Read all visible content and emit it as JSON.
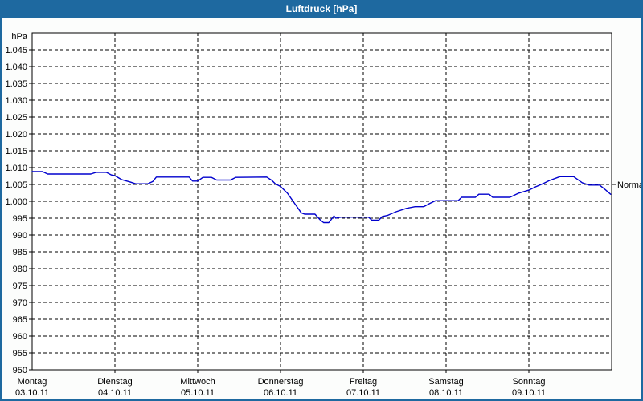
{
  "window": {
    "title": "Luftdruck [hPa]"
  },
  "colors": {
    "title_bar": "#1e69a0",
    "window_border": "#1e69a0",
    "title_text": "#ffffff",
    "background": "#fcfdfc",
    "plot_background": "#ffffff",
    "grid": "#000000",
    "axis": "#000000",
    "line": "#0000cd"
  },
  "chart_data": {
    "type": "line",
    "title": "Luftdruck [hPa]",
    "unit_label": "hPa",
    "grid": "dashed",
    "legend": "none",
    "ylim": [
      950,
      1050
    ],
    "xlim_hours": [
      0,
      168
    ],
    "y_axis": {
      "ticks": [
        {
          "value": 1045,
          "label": "1.045"
        },
        {
          "value": 1040,
          "label": "1.040"
        },
        {
          "value": 1035,
          "label": "1.035"
        },
        {
          "value": 1030,
          "label": "1.030"
        },
        {
          "value": 1025,
          "label": "1.025"
        },
        {
          "value": 1020,
          "label": "1.020"
        },
        {
          "value": 1015,
          "label": "1.015"
        },
        {
          "value": 1010,
          "label": "1.010"
        },
        {
          "value": 1005,
          "label": "1.005"
        },
        {
          "value": 1000,
          "label": "1.000"
        },
        {
          "value": 995,
          "label": "995"
        },
        {
          "value": 990,
          "label": "990"
        },
        {
          "value": 985,
          "label": "985"
        },
        {
          "value": 980,
          "label": "980"
        },
        {
          "value": 975,
          "label": "975"
        },
        {
          "value": 970,
          "label": "970"
        },
        {
          "value": 965,
          "label": "965"
        },
        {
          "value": 960,
          "label": "960"
        },
        {
          "value": 955,
          "label": "955"
        },
        {
          "value": 950,
          "label": "950"
        }
      ]
    },
    "x_axis": {
      "hours_total": 168,
      "hours_per_day": 24,
      "days": [
        {
          "weekday": "Montag",
          "date": "03.10.11"
        },
        {
          "weekday": "Dienstag",
          "date": "04.10.11"
        },
        {
          "weekday": "Mittwoch",
          "date": "05.10.11"
        },
        {
          "weekday": "Donnerstag",
          "date": "06.10.11"
        },
        {
          "weekday": "Freitag",
          "date": "07.10.11"
        },
        {
          "weekday": "Samstag",
          "date": "08.10.11"
        },
        {
          "weekday": "Sonntag",
          "date": "09.10.11"
        }
      ]
    },
    "annotations": [
      {
        "label": "Normal",
        "value": 1005
      }
    ],
    "series": [
      {
        "name": "Luftdruck",
        "color": "#0000cd",
        "points": [
          [
            0,
            1008.8
          ],
          [
            3,
            1008.8
          ],
          [
            4.5,
            1008.1
          ],
          [
            17,
            1008.1
          ],
          [
            18.5,
            1008.6
          ],
          [
            21.5,
            1008.6
          ],
          [
            23,
            1007.8
          ],
          [
            24,
            1007.6
          ],
          [
            26,
            1006.4
          ],
          [
            28.5,
            1005.7
          ],
          [
            30,
            1005.2
          ],
          [
            33.5,
            1005.2
          ],
          [
            35,
            1005.9
          ],
          [
            36,
            1007.2
          ],
          [
            45.5,
            1007.2
          ],
          [
            46.5,
            1006.0
          ],
          [
            48,
            1006.0
          ],
          [
            49.5,
            1007.1
          ],
          [
            52,
            1007.1
          ],
          [
            53.5,
            1006.3
          ],
          [
            57.5,
            1006.3
          ],
          [
            59,
            1007.1
          ],
          [
            68,
            1007.2
          ],
          [
            69.5,
            1006.2
          ],
          [
            70.5,
            1005.2
          ],
          [
            72,
            1004.4
          ],
          [
            74,
            1002.4
          ],
          [
            76,
            999.5
          ],
          [
            78,
            996.6
          ],
          [
            79,
            996.2
          ],
          [
            82,
            996.2
          ],
          [
            83.5,
            994.5
          ],
          [
            84.5,
            993.7
          ],
          [
            86,
            993.7
          ],
          [
            87,
            995.0
          ],
          [
            87.5,
            995.7
          ],
          [
            88,
            995.0
          ],
          [
            89.5,
            995.3
          ],
          [
            97.5,
            995.3
          ],
          [
            98.5,
            994.4
          ],
          [
            100.5,
            994.4
          ],
          [
            101.5,
            995.5
          ],
          [
            103,
            995.8
          ],
          [
            105.5,
            996.9
          ],
          [
            108.5,
            997.9
          ],
          [
            111,
            998.4
          ],
          [
            113.5,
            998.4
          ],
          [
            115.5,
            999.5
          ],
          [
            117,
            1000.2
          ],
          [
            123.5,
            1000.2
          ],
          [
            124.5,
            1001.2
          ],
          [
            128.5,
            1001.2
          ],
          [
            129.5,
            1002.1
          ],
          [
            132.5,
            1002.1
          ],
          [
            133.5,
            1001.2
          ],
          [
            138.5,
            1001.2
          ],
          [
            141,
            1002.4
          ],
          [
            144,
            1003.3
          ],
          [
            146,
            1004.3
          ],
          [
            148,
            1005.2
          ],
          [
            150,
            1006.2
          ],
          [
            153,
            1007.3
          ],
          [
            157,
            1007.3
          ],
          [
            159.5,
            1005.5
          ],
          [
            161.5,
            1004.8
          ],
          [
            164.5,
            1004.8
          ],
          [
            166,
            1003.6
          ],
          [
            167.7,
            1002.1
          ]
        ]
      }
    ]
  }
}
